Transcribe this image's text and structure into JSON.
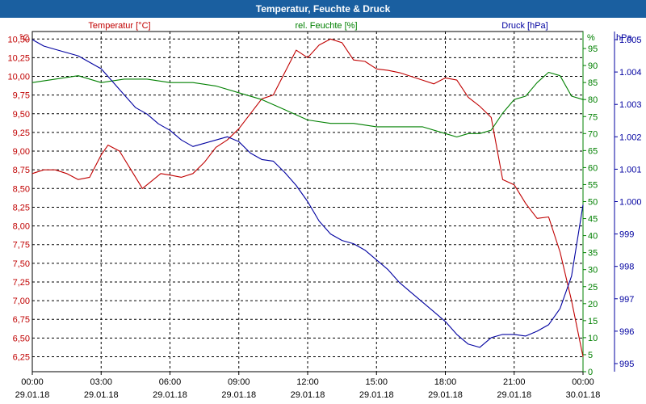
{
  "window": {
    "title": "Temperatur, Feuchte & Druck"
  },
  "colors": {
    "temperature": "#c00000",
    "humidity": "#008000",
    "pressure": "#0000a0",
    "title_bar": "#1a5fa0"
  },
  "chart_data": {
    "type": "line",
    "title": "Temperatur, Feuchte & Druck",
    "x_ticks": [
      {
        "time": "00:00",
        "date": "29.01.18",
        "hour": 0
      },
      {
        "time": "03:00",
        "date": "29.01.18",
        "hour": 3
      },
      {
        "time": "06:00",
        "date": "29.01.18",
        "hour": 6
      },
      {
        "time": "09:00",
        "date": "29.01.18",
        "hour": 9
      },
      {
        "time": "12:00",
        "date": "29.01.18",
        "hour": 12
      },
      {
        "time": "15:00",
        "date": "29.01.18",
        "hour": 15
      },
      {
        "time": "18:00",
        "date": "29.01.18",
        "hour": 18
      },
      {
        "time": "21:00",
        "date": "29.01.18",
        "hour": 21
      },
      {
        "time": "00:00",
        "date": "30.01.18",
        "hour": 24
      }
    ],
    "axes": {
      "temperature": {
        "label": "Temperatur [°C]",
        "unit": "°C",
        "min": 6.05,
        "max": 10.6,
        "ticks": [
          "6,25",
          "6,50",
          "6,75",
          "7,00",
          "7,25",
          "7,50",
          "7,75",
          "8,00",
          "8,25",
          "8,50",
          "8,75",
          "9,00",
          "9,25",
          "9,50",
          "9,75",
          "10,00",
          "10,25",
          "10,50"
        ],
        "tick_values": [
          6.25,
          6.5,
          6.75,
          7.0,
          7.25,
          7.5,
          7.75,
          8.0,
          8.25,
          8.5,
          8.75,
          9.0,
          9.25,
          9.5,
          9.75,
          10.0,
          10.25,
          10.5
        ]
      },
      "humidity": {
        "label": "rel. Feuchte [%]",
        "unit": "%",
        "min": 0,
        "max": 100,
        "ticks": [
          "0",
          "5",
          "10",
          "15",
          "20",
          "25",
          "30",
          "35",
          "40",
          "45",
          "50",
          "55",
          "60",
          "65",
          "70",
          "75",
          "80",
          "85",
          "90",
          "95"
        ],
        "tick_values": [
          0,
          5,
          10,
          15,
          20,
          25,
          30,
          35,
          40,
          45,
          50,
          55,
          60,
          65,
          70,
          75,
          80,
          85,
          90,
          95
        ]
      },
      "pressure": {
        "label": "Druck [hPa]",
        "unit": "hPa",
        "min": 994.75,
        "max": 1005.25,
        "ticks": [
          "995",
          "996",
          "997",
          "998",
          "999",
          "1.000",
          "1.001",
          "1.002",
          "1.003",
          "1.004",
          "1.005"
        ],
        "tick_values": [
          995,
          996,
          997,
          998,
          999,
          1000,
          1001,
          1002,
          1003,
          1004,
          1005
        ]
      }
    },
    "series": [
      {
        "name": "Temperatur [°C]",
        "axis": "temperature",
        "x": [
          0,
          0.5,
          1,
          1.5,
          2,
          2.5,
          3,
          3.3,
          3.8,
          4.3,
          4.8,
          5.2,
          5.6,
          6,
          6.5,
          7,
          7.5,
          8,
          8.5,
          9,
          9.5,
          10,
          10.5,
          11,
          11.5,
          12,
          12.5,
          13,
          13.5,
          14,
          14.5,
          15,
          15.5,
          16,
          16.5,
          17,
          17.5,
          18,
          18.5,
          19,
          19.5,
          20,
          20.5,
          21,
          21.5,
          22,
          22.5,
          23,
          23.5,
          24
        ],
        "values": [
          8.7,
          8.75,
          8.75,
          8.7,
          8.62,
          8.65,
          8.95,
          9.08,
          9.0,
          8.75,
          8.5,
          8.6,
          8.7,
          8.68,
          8.65,
          8.7,
          8.85,
          9.05,
          9.15,
          9.3,
          9.5,
          9.7,
          9.75,
          10.05,
          10.35,
          10.25,
          10.42,
          10.5,
          10.45,
          10.22,
          10.2,
          10.1,
          10.08,
          10.05,
          10.0,
          9.95,
          9.9,
          9.98,
          9.95,
          9.72,
          9.6,
          9.45,
          8.62,
          8.55,
          8.3,
          8.1,
          8.12,
          7.65,
          7.0,
          6.25
        ]
      },
      {
        "name": "rel. Feuchte [%]",
        "axis": "humidity",
        "x": [
          0,
          1,
          2,
          3,
          4,
          5,
          6,
          7,
          8,
          9,
          10,
          11,
          12,
          13,
          14,
          15,
          16,
          17,
          18,
          18.5,
          19,
          19.5,
          20,
          20.5,
          21,
          21.5,
          22,
          22.5,
          23,
          23.5,
          24
        ],
        "values": [
          85,
          86,
          87,
          85,
          86,
          86,
          85,
          85,
          84,
          82,
          80,
          77,
          74,
          73,
          73,
          72,
          72,
          72,
          70,
          69,
          70,
          70,
          71,
          76,
          80,
          81,
          85,
          88,
          87,
          81,
          80
        ]
      },
      {
        "name": "Druck [hPa]",
        "axis": "pressure",
        "x": [
          0,
          0.5,
          1,
          1.5,
          2,
          2.5,
          3,
          3.5,
          4,
          4.5,
          5,
          5.5,
          6,
          6.5,
          7,
          7.5,
          8,
          8.5,
          9,
          9.5,
          10,
          10.5,
          11,
          11.5,
          12,
          12.5,
          13,
          13.5,
          14,
          14.5,
          15,
          15.5,
          16,
          16.5,
          17,
          17.5,
          18,
          18.5,
          19,
          19.5,
          20,
          20.5,
          21,
          21.5,
          22,
          22.5,
          23,
          23.5,
          24
        ],
        "values": [
          1005.0,
          1004.8,
          1004.7,
          1004.6,
          1004.5,
          1004.3,
          1004.1,
          1003.7,
          1003.3,
          1002.9,
          1002.7,
          1002.4,
          1002.2,
          1001.9,
          1001.7,
          1001.8,
          1001.9,
          1002.0,
          1001.85,
          1001.5,
          1001.3,
          1001.25,
          1000.9,
          1000.5,
          1000.0,
          999.4,
          999.0,
          998.8,
          998.7,
          998.5,
          998.2,
          997.9,
          997.5,
          997.2,
          996.9,
          996.6,
          996.3,
          995.9,
          995.6,
          995.5,
          995.8,
          995.9,
          995.9,
          995.85,
          996.0,
          996.2,
          996.7,
          997.7,
          999.9
        ]
      }
    ]
  }
}
